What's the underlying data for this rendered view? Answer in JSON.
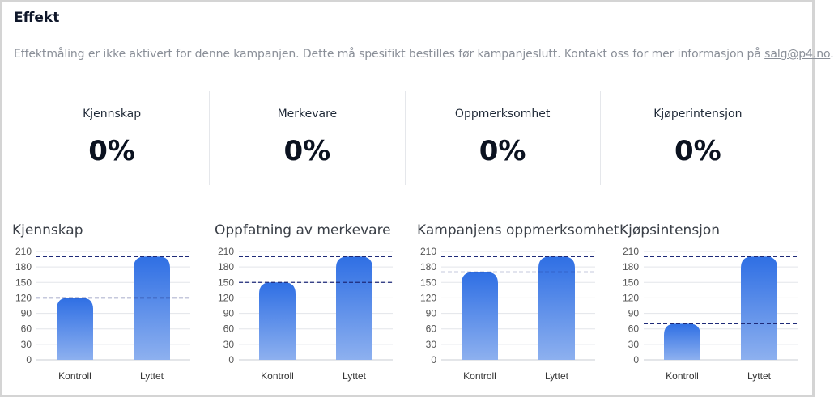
{
  "header": {
    "title": "Effekt",
    "notice_text": "Effektmåling er ikke aktivert for denne kampanjen. Dette må spesifikt bestilles før kampanjeslutt. Kontakt oss for mer informasjon på ",
    "notice_link": "salg@p4.no",
    "notice_end": "."
  },
  "metrics": [
    {
      "label": "Kjennskap",
      "value": "0%"
    },
    {
      "label": "Merkevare",
      "value": "0%"
    },
    {
      "label": "Oppmerksomhet",
      "value": "0%"
    },
    {
      "label": "Kjøperintensjon",
      "value": "0%"
    }
  ],
  "colors": {
    "bar_top": "#2f6fe4",
    "bar_bottom": "#8db0ef",
    "ref_line": "#1e2a78",
    "grid": "#e3e5ea"
  },
  "chart_data": [
    {
      "type": "bar",
      "title": "Kjennskap",
      "categories": [
        "Kontroll",
        "Lyttet"
      ],
      "values": [
        120,
        200
      ],
      "reference_lines": [
        200,
        120
      ],
      "yticks": [
        0,
        30,
        60,
        90,
        120,
        150,
        180,
        210
      ],
      "ylim": [
        0,
        210
      ],
      "grid": true
    },
    {
      "type": "bar",
      "title": "Oppfatning av merkevare",
      "categories": [
        "Kontroll",
        "Lyttet"
      ],
      "values": [
        150,
        200
      ],
      "reference_lines": [
        200,
        150
      ],
      "yticks": [
        0,
        30,
        60,
        90,
        120,
        150,
        180,
        210
      ],
      "ylim": [
        0,
        210
      ],
      "grid": true
    },
    {
      "type": "bar",
      "title": "Kampanjens oppmerksomhet",
      "categories": [
        "Kontroll",
        "Lyttet"
      ],
      "values": [
        170,
        200
      ],
      "reference_lines": [
        200,
        170
      ],
      "yticks": [
        0,
        30,
        60,
        90,
        120,
        150,
        180,
        210
      ],
      "ylim": [
        0,
        210
      ],
      "grid": true
    },
    {
      "type": "bar",
      "title": "Kjøpsintensjon",
      "categories": [
        "Kontroll",
        "Lyttet"
      ],
      "values": [
        70,
        200
      ],
      "reference_lines": [
        200,
        70
      ],
      "yticks": [
        0,
        30,
        60,
        90,
        120,
        150,
        180,
        210
      ],
      "ylim": [
        0,
        210
      ],
      "grid": true
    }
  ]
}
